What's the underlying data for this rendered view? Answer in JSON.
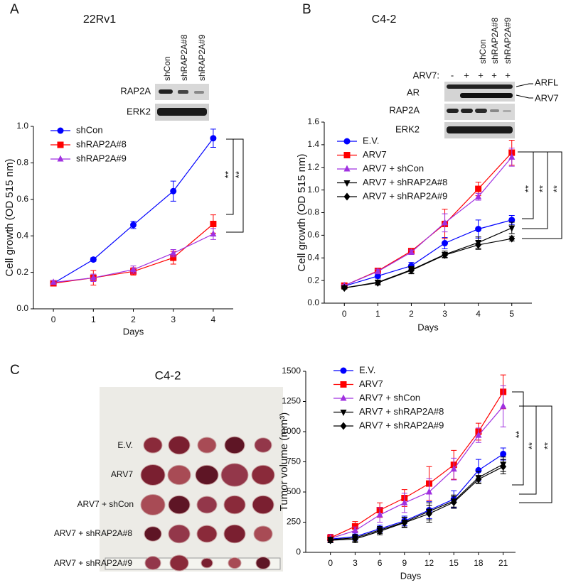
{
  "panel_labels": [
    "A",
    "B",
    "C"
  ],
  "chart_data": [
    {
      "type": "line",
      "title": "22Rv1",
      "xlabel": "Days",
      "ylabel": "Cell growth (OD 515 nm)",
      "x": [
        0,
        1,
        2,
        3,
        4
      ],
      "xlim": [
        -0.5,
        4.5
      ],
      "xticks": [
        0,
        1,
        2,
        3,
        4
      ],
      "ylim": [
        0,
        1
      ],
      "yticks": [
        {
          "value": 0,
          "label": "0.0"
        },
        0.2,
        0.4,
        0.6,
        0.8,
        {
          "value": 1,
          "label": "1.0"
        }
      ],
      "legend": "upper left",
      "annotations": [
        "**",
        "**"
      ],
      "series": [
        {
          "name": "shCon",
          "color": "#0000ff",
          "marker": "o",
          "values": [
            0.14,
            0.27,
            0.46,
            0.645,
            0.935
          ],
          "errors": [
            0.01,
            0.01,
            0.02,
            0.055,
            0.05
          ]
        },
        {
          "name": "shRAP2A#8",
          "color": "#ff0000",
          "marker": "s",
          "values": [
            0.14,
            0.17,
            0.205,
            0.28,
            0.465
          ],
          "errors": [
            0.01,
            0.04,
            0.02,
            0.035,
            0.05
          ]
        },
        {
          "name": "shRAP2A#9",
          "color": "#a030e0",
          "marker": "^",
          "values": [
            0.145,
            0.17,
            0.215,
            0.305,
            0.41
          ],
          "errors": [
            0.01,
            0.02,
            0.02,
            0.02,
            0.03
          ]
        }
      ]
    },
    {
      "type": "line",
      "title": "C4-2",
      "xlabel": "Days",
      "ylabel": "Cell growth (OD 515 nm)",
      "x": [
        0,
        1,
        2,
        3,
        4,
        5
      ],
      "xlim": [
        -0.6,
        5.6
      ],
      "xticks": [
        0,
        1,
        2,
        3,
        4,
        5
      ],
      "ylim": [
        0,
        1.6
      ],
      "yticks": [
        {
          "value": 0,
          "label": "0.0"
        },
        0.2,
        0.4,
        0.6,
        0.8,
        {
          "value": 1,
          "label": "1.0"
        },
        1.2,
        1.4,
        1.6
      ],
      "legend": "upper left",
      "annotations": [
        "**",
        "**",
        "**"
      ],
      "series": [
        {
          "name": "E.V.",
          "color": "#0000ff",
          "marker": "o",
          "values": [
            0.15,
            0.24,
            0.33,
            0.53,
            0.655,
            0.735
          ],
          "errors": [
            0.01,
            0.02,
            0.03,
            0.05,
            0.08,
            0.04
          ]
        },
        {
          "name": "ARV7",
          "color": "#ff0000",
          "marker": "s",
          "values": [
            0.155,
            0.285,
            0.46,
            0.7,
            1.01,
            1.33
          ],
          "errors": [
            0.01,
            0.02,
            0.02,
            0.13,
            0.06,
            0.11
          ]
        },
        {
          "name": "ARV7 + shCon",
          "color": "#a030e0",
          "marker": "^",
          "values": [
            0.155,
            0.28,
            0.45,
            0.71,
            0.94,
            1.29
          ],
          "errors": [
            0.01,
            0.02,
            0.02,
            0.08,
            0.03,
            0.08
          ]
        },
        {
          "name": "ARV7 + shRAP2A#8",
          "color": "#000000",
          "marker": "v",
          "values": [
            0.135,
            0.185,
            0.295,
            0.43,
            0.535,
            0.665
          ],
          "errors": [
            0.01,
            0.02,
            0.03,
            0.03,
            0.05,
            0.05
          ]
        },
        {
          "name": "ARV7 + shRAP2A#9",
          "color": "#000000",
          "marker": "D",
          "values": [
            0.135,
            0.18,
            0.29,
            0.425,
            0.515,
            0.57
          ],
          "errors": [
            0.01,
            0.02,
            0.03,
            0.02,
            0.04,
            0.02
          ]
        }
      ]
    },
    {
      "type": "line",
      "xlabel": "Days",
      "ylabel": "Tumor volume (mm³)",
      "x": [
        0,
        3,
        6,
        9,
        12,
        15,
        18,
        21
      ],
      "xlim": [
        -3,
        22.5
      ],
      "xticks": [
        0,
        3,
        6,
        9,
        12,
        15,
        18,
        21
      ],
      "ylim": [
        0,
        1500
      ],
      "yticks": [
        0,
        250,
        500,
        750,
        1000,
        1250,
        1500
      ],
      "legend": "upper left",
      "annotations": [
        "**",
        "**",
        "**"
      ],
      "series": [
        {
          "name": "E.V.",
          "color": "#0000ff",
          "marker": "o",
          "values": [
            110,
            130,
            195,
            260,
            350,
            440,
            680,
            815
          ],
          "errors": [
            30,
            30,
            30,
            40,
            70,
            70,
            90,
            50
          ]
        },
        {
          "name": "ARV7",
          "color": "#ff0000",
          "marker": "s",
          "values": [
            120,
            215,
            350,
            450,
            570,
            725,
            1000,
            1330
          ],
          "errors": [
            30,
            40,
            60,
            70,
            140,
            120,
            70,
            140
          ]
        },
        {
          "name": "ARV7 + shCon",
          "color": "#a030e0",
          "marker": "^",
          "values": [
            115,
            180,
            310,
            410,
            500,
            690,
            970,
            1210
          ],
          "errors": [
            30,
            30,
            60,
            80,
            110,
            90,
            60,
            170
          ]
        },
        {
          "name": "ARV7 + shRAP2A#8",
          "color": "#000000",
          "marker": "v",
          "values": [
            105,
            120,
            185,
            250,
            340,
            425,
            620,
            730
          ],
          "errors": [
            20,
            30,
            30,
            40,
            70,
            50,
            50,
            60
          ]
        },
        {
          "name": "ARV7 + shRAP2A#9",
          "color": "#000000",
          "marker": "D",
          "values": [
            100,
            110,
            175,
            245,
            320,
            415,
            605,
            710
          ],
          "errors": [
            20,
            30,
            30,
            40,
            70,
            50,
            30,
            60
          ]
        }
      ]
    }
  ],
  "blot_a": {
    "lanes": [
      "shCon",
      "shRAP2A#8",
      "shRAP2A#9"
    ],
    "rows": [
      "RAP2A",
      "ERK2"
    ]
  },
  "blot_b": {
    "lanes": [
      "shCon",
      "shRAP2A#8",
      "shRAP2A#9"
    ],
    "arv7_label": "ARV7:",
    "arv7_marks": [
      "-",
      "+",
      "+",
      "+",
      "+"
    ],
    "rows": [
      "AR",
      "RAP2A",
      "ERK2"
    ],
    "band_labels": [
      "ARFL",
      "ARV7"
    ]
  },
  "photo": {
    "title": "C4-2",
    "rows": [
      "E.V.",
      "ARV7",
      "ARV7 + shCon",
      "ARV7 + shRAP2A#8",
      "ARV7 + shRAP2A#9"
    ]
  }
}
